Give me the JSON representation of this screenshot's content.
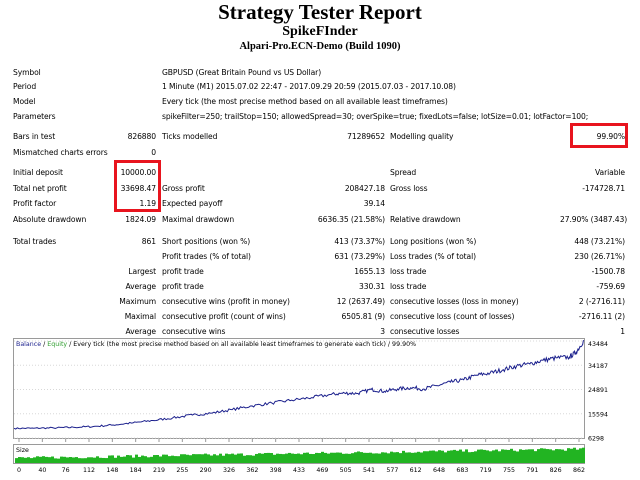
{
  "header": {
    "title": "Strategy Tester Report",
    "expert": "SpikeFInder",
    "server": "Alpari-Pro.ECN-Demo (Build 1090)"
  },
  "info": {
    "symbol_label": "Symbol",
    "symbol_value": "GBPUSD (Great Britain Pound vs US Dollar)",
    "period_label": "Period",
    "period_value": "1 Minute (M1) 2015.07.02 22:47 - 2017.09.29 20:59 (2015.07.03 - 2017.10.08)",
    "model_label": "Model",
    "model_value": "Every tick (the most precise method based on all available least timeframes)",
    "params_label": "Parameters",
    "params_value": "spikeFilter=250; trailStop=150; allowedSpread=30; overSpike=true; fixedLots=false; lotSize=0.01; lotFactor=100;"
  },
  "stats": {
    "bars_label": "Bars in test",
    "bars_value": "826880",
    "ticks_label": "Ticks modelled",
    "ticks_value": "71289652",
    "quality_label": "Modelling quality",
    "quality_value": "99.90%",
    "mismatch_label": "Mismatched charts errors",
    "mismatch_value": "0",
    "deposit_label": "Initial deposit",
    "deposit_value": "10000.00",
    "spread_label": "Spread",
    "spread_value": "Variable",
    "netprofit_label": "Total net profit",
    "netprofit_value": "33698.47",
    "grossprofit_label": "Gross profit",
    "grossprofit_value": "208427.18",
    "grossloss_label": "Gross loss",
    "grossloss_value": "-174728.71",
    "pf_label": "Profit factor",
    "pf_value": "1.19",
    "payoff_label": "Expected payoff",
    "payoff_value": "39.14",
    "absdd_label": "Absolute drawdown",
    "absdd_value": "1824.09",
    "maxdd_label": "Maximal drawdown",
    "maxdd_value": "6636.35 (21.58%)",
    "reldd_label": "Relative drawdown",
    "reldd_value": "27.90% (3487.43)",
    "trades_label": "Total trades",
    "trades_value": "861",
    "short_label": "Short positions (won %)",
    "short_value": "413 (73.37%)",
    "long_label": "Long positions (won %)",
    "long_value": "448 (73.21%)",
    "ptrades_label": "Profit trades (% of total)",
    "ptrades_value": "631 (73.29%)",
    "ltrades_label": "Loss trades (% of total)",
    "ltrades_value": "230 (26.71%)",
    "largest_label": "Largest",
    "largest_pt_label": "profit trade",
    "largest_pt_value": "1655.13",
    "largest_lt_label": "loss trade",
    "largest_lt_value": "-1500.78",
    "average_label": "Average",
    "average_pt_label": "profit trade",
    "average_pt_value": "330.31",
    "average_lt_label": "loss trade",
    "average_lt_value": "-759.69",
    "maximum_label": "Maximum",
    "max_cw_label": "consecutive wins (profit in money)",
    "max_cw_value": "12 (2637.49)",
    "max_cl_label": "consecutive losses (loss in money)",
    "max_cl_value": "2 (-2716.11)",
    "maximal_label": "Maximal",
    "maxl_cp_label": "consecutive profit (count of wins)",
    "maxl_cp_value": "6505.81 (9)",
    "maxl_cl_label": "consecutive loss (count of losses)",
    "maxl_cl_value": "-2716.11 (2)",
    "average2_label": "Average",
    "avg_cw_label": "consecutive wins",
    "avg_cw_value": "3",
    "avg_cl_label": "consecutive losses",
    "avg_cl_value": "1"
  },
  "chart_data": {
    "type": "line",
    "legend_balance": "Balance",
    "legend_sep": " / ",
    "legend_equity": "Equity",
    "legend_rest": " / Every tick (the most precise method based on all available least timeframes to generate each tick) / 99.90%",
    "size_label": "Size",
    "x_ticks": [
      "0",
      "40",
      "76",
      "112",
      "148",
      "184",
      "219",
      "255",
      "290",
      "326",
      "362",
      "398",
      "433",
      "469",
      "505",
      "541",
      "577",
      "612",
      "648",
      "683",
      "719",
      "755",
      "791",
      "826",
      "862"
    ],
    "y_ticks": [
      "43484",
      "34187",
      "24891",
      "15594",
      "6298"
    ],
    "xlim": [
      0,
      862
    ],
    "ylim": [
      6298,
      43484
    ],
    "balance_color": "#1a1f8c",
    "equity_color": "#2e9e2e",
    "size_color": "#22b422",
    "x": [
      0,
      30,
      60,
      90,
      120,
      150,
      180,
      210,
      240,
      270,
      300,
      330,
      360,
      390,
      420,
      450,
      480,
      500,
      520,
      540,
      560,
      580,
      600,
      620,
      640,
      660,
      680,
      700,
      720,
      740,
      760,
      780,
      800,
      820,
      840,
      850,
      862
    ],
    "balance": [
      10000,
      10050,
      10150,
      10400,
      10700,
      11300,
      12100,
      13000,
      14000,
      15100,
      15900,
      17200,
      18600,
      19700,
      20800,
      21800,
      23000,
      23500,
      23400,
      24900,
      24200,
      25100,
      25600,
      25100,
      26400,
      27700,
      28600,
      30400,
      31200,
      32500,
      33900,
      34700,
      36100,
      37000,
      37300,
      39200,
      43700
    ]
  }
}
